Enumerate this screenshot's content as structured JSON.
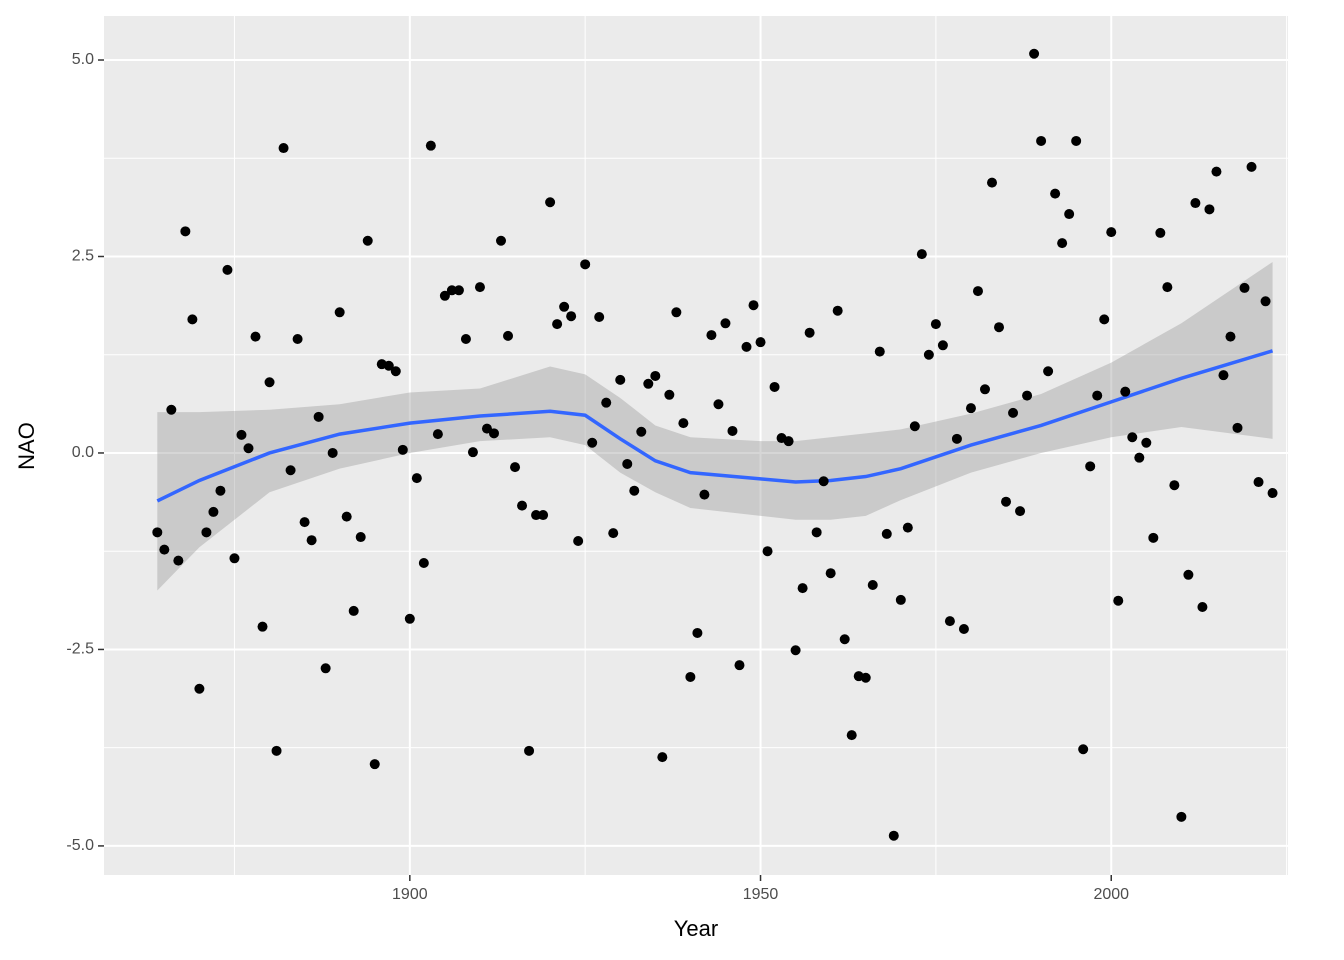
{
  "chart_data": {
    "type": "scatter",
    "x_label": "Year",
    "y_label": "NAO",
    "xlim": [
      1856.4,
      2025.2
    ],
    "ylim": [
      -5.37,
      5.56
    ],
    "xticks": [
      1900,
      1950,
      2000
    ],
    "yticks": [
      {
        "value": -5,
        "label": "-5.0"
      },
      {
        "value": -2.5,
        "label": "-2.5"
      },
      {
        "value": 0,
        "label": "0.0"
      },
      {
        "value": 2.5,
        "label": "2.5"
      },
      {
        "value": 5,
        "label": "5.0"
      }
    ],
    "xminor": [
      1875,
      1925,
      1975,
      2025
    ],
    "yminor": [
      -3.75,
      -1.25,
      1.25,
      3.75
    ],
    "grid": true,
    "panel_color": "#ebebeb",
    "series": [
      {
        "color": "#000000",
        "x": [
          1864,
          1865,
          1866,
          1867,
          1868,
          1869,
          1870,
          1871,
          1872,
          1873,
          1874,
          1875,
          1876,
          1877,
          1878,
          1879,
          1880,
          1881,
          1882,
          1883,
          1884,
          1885,
          1886,
          1887,
          1888,
          1889,
          1890,
          1891,
          1892,
          1893,
          1894,
          1895,
          1896,
          1897,
          1898,
          1899,
          1900,
          1901,
          1902,
          1903,
          1904,
          1905,
          1906,
          1907,
          1908,
          1909,
          1910,
          1911,
          1912,
          1913,
          1914,
          1915,
          1916,
          1917,
          1918,
          1919,
          1920,
          1921,
          1922,
          1923,
          1924,
          1925,
          1926,
          1927,
          1928,
          1929,
          1930,
          1931,
          1932,
          1933,
          1934,
          1935,
          1936,
          1937,
          1938,
          1939,
          1940,
          1941,
          1942,
          1943,
          1944,
          1945,
          1946,
          1947,
          1948,
          1949,
          1950,
          1951,
          1952,
          1953,
          1954,
          1955,
          1956,
          1957,
          1958,
          1959,
          1960,
          1961,
          1962,
          1963,
          1964,
          1965,
          1966,
          1967,
          1968,
          1969,
          1970,
          1971,
          1972,
          1973,
          1974,
          1975,
          1976,
          1977,
          1978,
          1979,
          1980,
          1981,
          1982,
          1983,
          1984,
          1985,
          1986,
          1987,
          1988,
          1989,
          1990,
          1991,
          1992,
          1993,
          1994,
          1995,
          1996,
          1997,
          1998,
          1999,
          2000,
          2001,
          2002,
          2003,
          2004,
          2005,
          2006,
          2007,
          2008,
          2009,
          2010,
          2011,
          2012,
          2013,
          2014,
          2015,
          2016,
          2017,
          2018,
          2019,
          2020,
          2021,
          2022,
          2023
        ],
        "values": [
          -1.01,
          -1.23,
          0.55,
          -1.37,
          2.82,
          1.7,
          -3.0,
          -1.01,
          -0.75,
          -0.48,
          2.33,
          -1.34,
          0.23,
          0.06,
          1.48,
          -2.21,
          0.9,
          -3.79,
          3.88,
          -0.22,
          1.45,
          -0.88,
          -1.11,
          0.46,
          -2.74,
          0.0,
          1.79,
          -0.81,
          -2.01,
          -1.07,
          2.7,
          -3.96,
          1.13,
          1.11,
          1.04,
          0.04,
          -2.11,
          -0.32,
          -1.4,
          3.91,
          0.24,
          2.0,
          2.07,
          2.07,
          1.45,
          0.01,
          2.11,
          0.31,
          0.25,
          2.7,
          1.49,
          -0.18,
          -0.67,
          -3.79,
          -0.79,
          -0.79,
          3.19,
          1.64,
          1.86,
          1.74,
          -1.12,
          2.4,
          0.13,
          1.73,
          0.64,
          -1.02,
          0.93,
          -0.14,
          -0.48,
          0.27,
          0.88,
          0.98,
          -3.87,
          0.74,
          1.79,
          0.38,
          -2.85,
          -2.29,
          -0.53,
          1.5,
          0.62,
          1.65,
          0.28,
          -2.7,
          1.35,
          1.88,
          1.41,
          -1.25,
          0.84,
          0.19,
          0.15,
          -2.51,
          -1.72,
          1.53,
          -1.01,
          -0.36,
          -1.53,
          1.81,
          -2.37,
          -3.59,
          -2.84,
          -2.86,
          -1.68,
          1.29,
          -1.03,
          -4.87,
          -1.87,
          -0.95,
          0.34,
          2.53,
          1.25,
          1.64,
          1.37,
          -2.14,
          0.18,
          -2.24,
          0.57,
          2.06,
          0.81,
          3.44,
          1.6,
          -0.62,
          0.51,
          -0.74,
          0.73,
          5.08,
          3.97,
          1.04,
          3.3,
          2.67,
          3.04,
          3.97,
          -3.77,
          -0.17,
          0.73,
          1.7,
          2.81,
          -1.88,
          0.78,
          0.2,
          -0.06,
          0.13,
          -1.08,
          2.8,
          2.11,
          -0.41,
          -4.63,
          -1.55,
          3.18,
          -1.96,
          3.1,
          3.58,
          0.99,
          1.48,
          0.32,
          2.1,
          3.64,
          -0.37,
          1.93,
          -0.51
        ]
      },
      {
        "color": "#3366ff",
        "band_color": "#999999",
        "x": [
          1864,
          1870,
          1880,
          1890,
          1900,
          1910,
          1920,
          1925,
          1930,
          1935,
          1940,
          1950,
          1955,
          1960,
          1965,
          1970,
          1980,
          1990,
          2000,
          2010,
          2023
        ],
        "values": [
          -0.61,
          -0.35,
          0.0,
          0.24,
          0.38,
          0.47,
          0.53,
          0.48,
          0.18,
          -0.1,
          -0.25,
          -0.33,
          -0.37,
          -0.35,
          -0.3,
          -0.2,
          0.1,
          0.35,
          0.65,
          0.95,
          1.3
        ],
        "lower": [
          -1.75,
          -1.2,
          -0.5,
          -0.2,
          0.0,
          0.15,
          0.2,
          0.1,
          -0.25,
          -0.5,
          -0.7,
          -0.8,
          -0.85,
          -0.85,
          -0.8,
          -0.6,
          -0.25,
          0.0,
          0.2,
          0.33,
          0.18
        ],
        "upper": [
          0.52,
          0.52,
          0.55,
          0.62,
          0.77,
          0.82,
          1.1,
          1.0,
          0.7,
          0.35,
          0.2,
          0.15,
          0.15,
          0.2,
          0.25,
          0.3,
          0.5,
          0.75,
          1.15,
          1.65,
          2.43
        ]
      }
    ]
  }
}
